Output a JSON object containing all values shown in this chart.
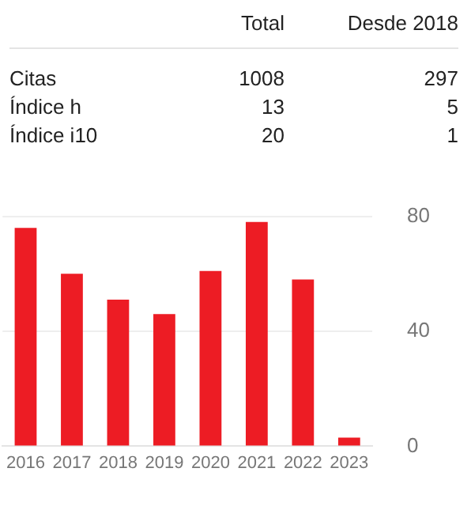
{
  "chart_data": [
    {
      "type": "other",
      "annotations": [
        "Total",
        "Desde 2018",
        "Citas",
        "1008",
        "297",
        "Índice h",
        "13",
        "5",
        "Índice i10",
        "20",
        "1"
      ]
    },
    {
      "type": "bar",
      "categories": [
        "2016",
        "2017",
        "2018",
        "2019",
        "2020",
        "2021",
        "2022",
        "2023"
      ],
      "values": [
        76,
        60,
        51,
        46,
        61,
        78,
        58,
        3
      ],
      "color": "#ed1c24",
      "ylim": [
        0,
        80
      ],
      "yticks": [
        0,
        40,
        80
      ],
      "grid": "y",
      "legend": false
    }
  ]
}
